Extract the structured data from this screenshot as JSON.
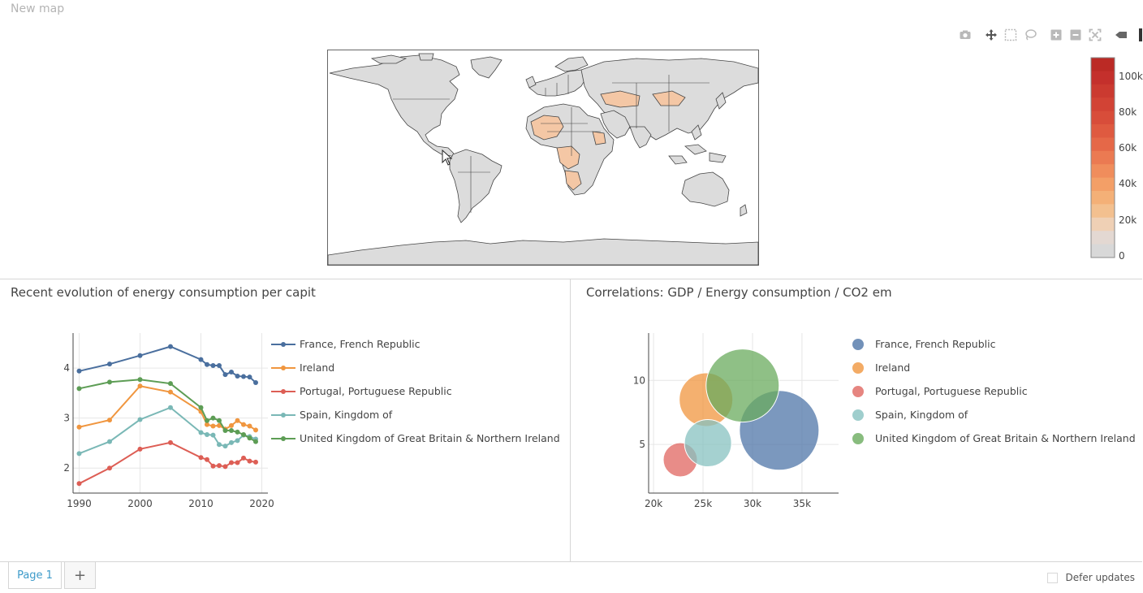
{
  "map": {
    "title": "New map",
    "colorbar": {
      "ticks": [
        "100k",
        "80k",
        "60k",
        "40k",
        "20k",
        "0"
      ],
      "max": 110000,
      "colors": [
        "#bb2a25",
        "#c4302c",
        "#cb3a30",
        "#d24335",
        "#d84d3a",
        "#df5a40",
        "#e56848",
        "#eb7a52",
        "#f08d5c",
        "#f39f67",
        "#f4b077",
        "#f3c08f",
        "#efd0b5",
        "#e3d8d2",
        "#d8d8d8"
      ]
    },
    "land_color": "#dcdcdc",
    "highlight_color": "#f4c7a5",
    "border_color": "#444444"
  },
  "toolbar": {
    "icons": [
      "camera-icon",
      "pan-icon",
      "box-select-icon",
      "lasso-select-icon",
      "zoom-in-icon",
      "zoom-out-icon",
      "autoscale-icon",
      "reset-axes-icon"
    ]
  },
  "panels": {
    "left_title": "Recent evolution of energy consumption per capit",
    "right_title": "Correlations: GDP / Energy consumption / CO2 em"
  },
  "chart_data": [
    {
      "type": "line",
      "x_ticks": [
        "1990",
        "2000",
        "2010",
        "2020"
      ],
      "y_ticks": [
        "2",
        "3",
        "4"
      ],
      "xlim": [
        1989,
        2021
      ],
      "ylim": [
        1.5,
        4.7
      ],
      "series": [
        {
          "name": "France, French Republic",
          "color": "#4a6f9e",
          "points": [
            [
              1990,
              3.94
            ],
            [
              1995,
              4.08
            ],
            [
              2000,
              4.25
            ],
            [
              2005,
              4.43
            ],
            [
              2010,
              4.17
            ],
            [
              2011,
              4.07
            ],
            [
              2012,
              4.05
            ],
            [
              2013,
              4.05
            ],
            [
              2014,
              3.87
            ],
            [
              2015,
              3.92
            ],
            [
              2016,
              3.84
            ],
            [
              2017,
              3.83
            ],
            [
              2018,
              3.82
            ],
            [
              2019,
              3.71
            ]
          ]
        },
        {
          "name": "Ireland",
          "color": "#f0963f",
          "points": [
            [
              1990,
              2.82
            ],
            [
              1995,
              2.96
            ],
            [
              2000,
              3.64
            ],
            [
              2005,
              3.52
            ],
            [
              2010,
              3.13
            ],
            [
              2011,
              2.87
            ],
            [
              2012,
              2.84
            ],
            [
              2013,
              2.85
            ],
            [
              2014,
              2.78
            ],
            [
              2015,
              2.85
            ],
            [
              2016,
              2.95
            ],
            [
              2017,
              2.87
            ],
            [
              2018,
              2.84
            ],
            [
              2019,
              2.76
            ]
          ]
        },
        {
          "name": "Portugal, Portuguese Republic",
          "color": "#dd5e55",
          "points": [
            [
              1990,
              1.69
            ],
            [
              1995,
              2.0
            ],
            [
              2000,
              2.38
            ],
            [
              2005,
              2.51
            ],
            [
              2010,
              2.21
            ],
            [
              2011,
              2.17
            ],
            [
              2012,
              2.04
            ],
            [
              2013,
              2.05
            ],
            [
              2014,
              2.03
            ],
            [
              2015,
              2.11
            ],
            [
              2016,
              2.11
            ],
            [
              2017,
              2.2
            ],
            [
              2018,
              2.14
            ],
            [
              2019,
              2.12
            ]
          ]
        },
        {
          "name": "Spain, Kingdom of",
          "color": "#7ab8b6",
          "points": [
            [
              1990,
              2.29
            ],
            [
              1995,
              2.53
            ],
            [
              2000,
              2.97
            ],
            [
              2005,
              3.21
            ],
            [
              2010,
              2.71
            ],
            [
              2011,
              2.67
            ],
            [
              2012,
              2.66
            ],
            [
              2013,
              2.47
            ],
            [
              2014,
              2.44
            ],
            [
              2015,
              2.51
            ],
            [
              2016,
              2.55
            ],
            [
              2017,
              2.66
            ],
            [
              2018,
              2.63
            ],
            [
              2019,
              2.58
            ]
          ]
        },
        {
          "name": "United Kingdom of Great Britain & Northern Ireland",
          "color": "#5d9d55",
          "points": [
            [
              1990,
              3.59
            ],
            [
              1995,
              3.72
            ],
            [
              2000,
              3.77
            ],
            [
              2005,
              3.69
            ],
            [
              2010,
              3.21
            ],
            [
              2011,
              2.95
            ],
            [
              2012,
              3.0
            ],
            [
              2013,
              2.95
            ],
            [
              2014,
              2.75
            ],
            [
              2015,
              2.75
            ],
            [
              2016,
              2.72
            ],
            [
              2017,
              2.67
            ],
            [
              2018,
              2.6
            ],
            [
              2019,
              2.53
            ]
          ]
        }
      ]
    },
    {
      "type": "scatter",
      "x_ticks": [
        "20k",
        "25k",
        "30k",
        "35k"
      ],
      "y_ticks": [
        "5",
        "10"
      ],
      "xlim": [
        19500,
        38700
      ],
      "ylim": [
        1.2,
        13.7
      ],
      "series": [
        {
          "name": "France, French Republic",
          "color": "#4f75a8",
          "x": 32700,
          "y": 6.1,
          "size": 49
        },
        {
          "name": "Ireland",
          "color": "#f0963f",
          "x": 25300,
          "y": 8.5,
          "size": 33
        },
        {
          "name": "Portugal, Portuguese Republic",
          "color": "#e06660",
          "x": 22700,
          "y": 3.8,
          "size": 21
        },
        {
          "name": "Spain, Kingdom of",
          "color": "#87c2c0",
          "x": 25500,
          "y": 5.1,
          "size": 29
        },
        {
          "name": "United Kingdom of Great Britain & Northern Ireland",
          "color": "#6aab5e",
          "x": 29000,
          "y": 9.6,
          "size": 45
        }
      ]
    }
  ],
  "tabs": {
    "page1": "Page 1",
    "add": "+",
    "defer_label": "Defer updates"
  }
}
